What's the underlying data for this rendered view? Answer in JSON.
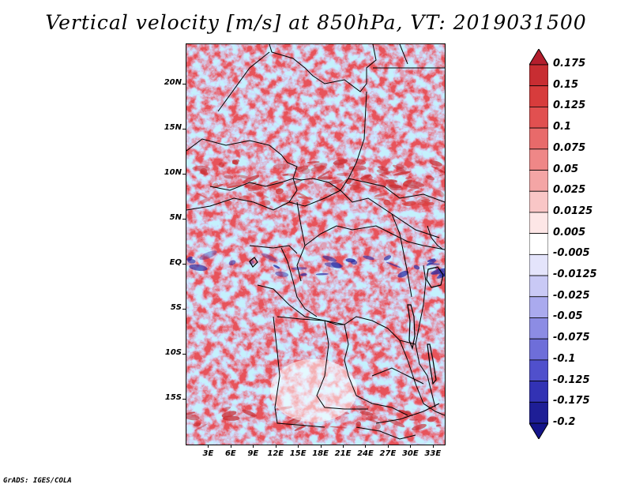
{
  "title": "Vertical velocity [m/s] at 850hPa, VT: 2019031500",
  "footer": "GrADS: IGES/COLA",
  "variable": "Vertical velocity",
  "units": "m/s",
  "level": "850hPa",
  "valid_time": "2019031500",
  "map": {
    "lat_labels": [
      "20N",
      "15N",
      "10N",
      "5N",
      "EQ",
      "5S",
      "10S",
      "15S"
    ],
    "lat_values": [
      20,
      15,
      10,
      5,
      0,
      -5,
      -10,
      -15
    ],
    "lon_labels": [
      "3E",
      "6E",
      "9E",
      "12E",
      "15E",
      "18E",
      "21E",
      "24E",
      "27E",
      "30E",
      "33E"
    ],
    "lon_values": [
      3,
      6,
      9,
      12,
      15,
      18,
      21,
      24,
      27,
      30,
      33
    ],
    "lon_range": [
      0,
      34.5
    ],
    "lat_range": [
      -20,
      24.5
    ]
  },
  "colorbar": {
    "labels": [
      "0.175",
      "0.15",
      "0.125",
      "0.1",
      "0.075",
      "0.05",
      "0.025",
      "0.0125",
      "0.005",
      "-0.005",
      "-0.0125",
      "-0.025",
      "-0.05",
      "-0.075",
      "-0.1",
      "-0.125",
      "-0.175",
      "-0.2"
    ],
    "colors": [
      "#b41e2d",
      "#c82d32",
      "#d73c3c",
      "#e15050",
      "#e86a6a",
      "#ef8787",
      "#f4a5a5",
      "#f9c6c6",
      "#fde6e6",
      "#ffffff",
      "#e4e4fb",
      "#c9c9f5",
      "#aaaaee",
      "#8c8ce4",
      "#6e6ed9",
      "#5050cc",
      "#3232b4",
      "#1e1e96",
      "#14148a"
    ]
  }
}
